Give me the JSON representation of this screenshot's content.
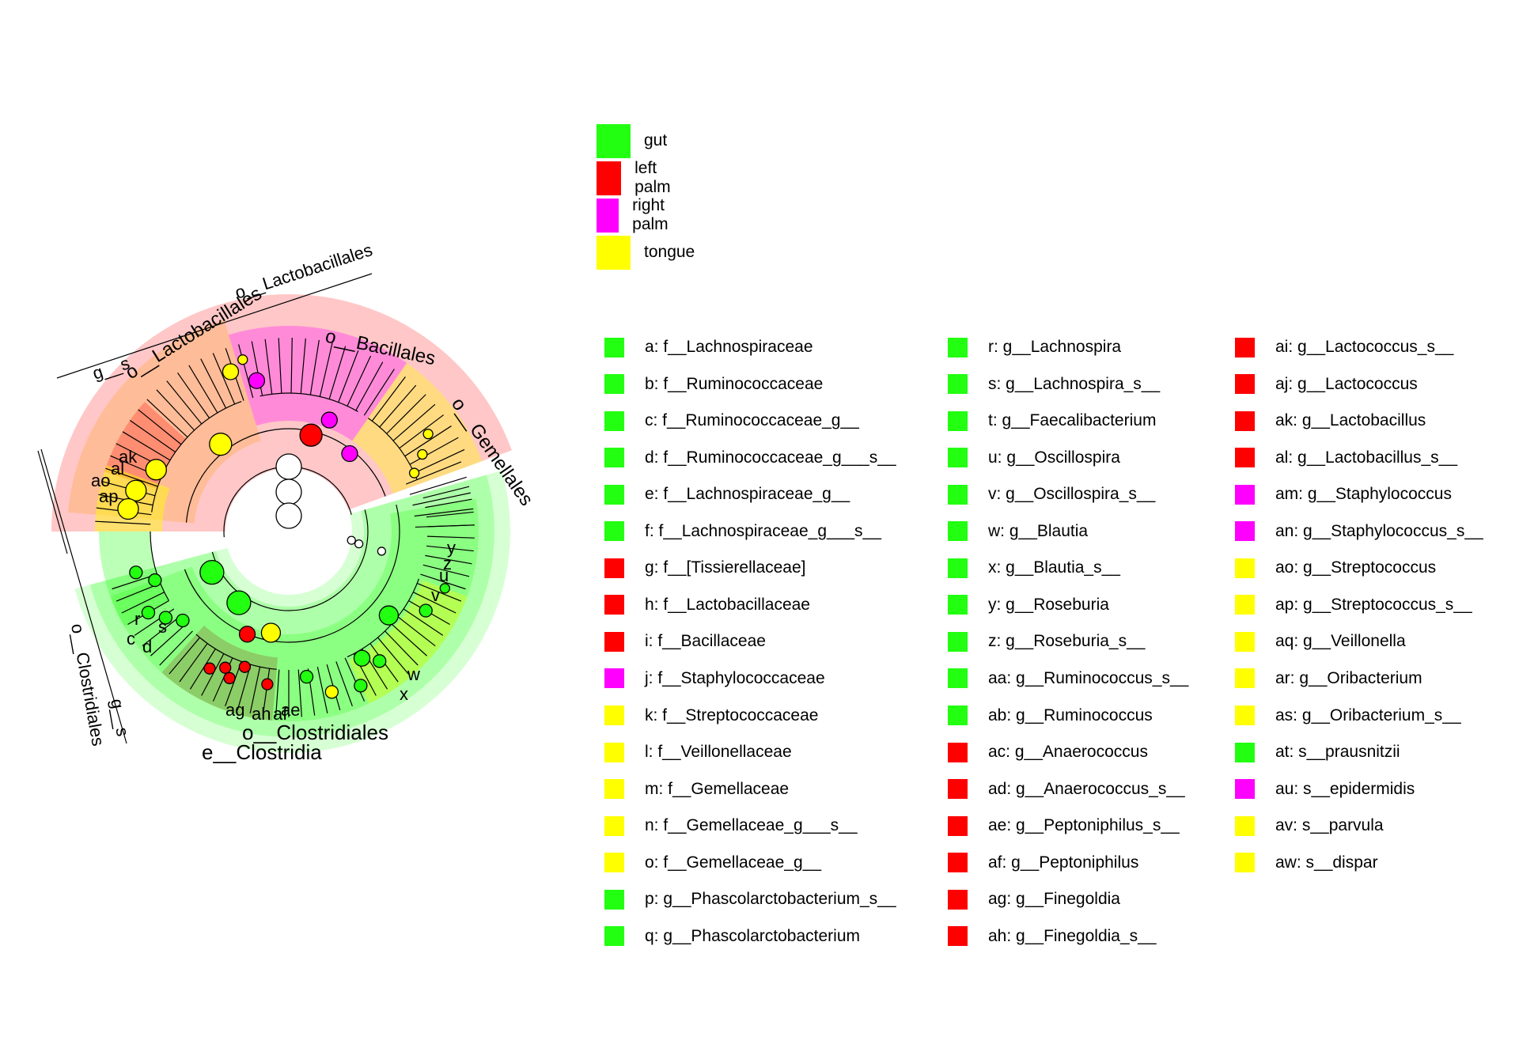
{
  "colors": {
    "gut": "#22ff11",
    "left_palm": "#ff0000",
    "right_palm": "#ff00ff",
    "tongue": "#ffff00"
  },
  "class_legend": [
    {
      "label": "gut",
      "color": "#22ff11"
    },
    {
      "label": "left palm",
      "color": "#ff0000"
    },
    {
      "label": "right palm",
      "color": "#ff00ff"
    },
    {
      "label": "tongue",
      "color": "#ffff00"
    }
  ],
  "taxa_key": {
    "columns": [
      [
        {
          "label": "a: f__Lachnospiraceae",
          "class": "gut"
        },
        {
          "label": "b: f__Ruminococcaceae",
          "class": "gut"
        },
        {
          "label": "c: f__Ruminococcaceae_g__",
          "class": "gut"
        },
        {
          "label": "d: f__Ruminococcaceae_g___s__",
          "class": "gut"
        },
        {
          "label": "e: f__Lachnospiraceae_g__",
          "class": "gut"
        },
        {
          "label": "f: f__Lachnospiraceae_g___s__",
          "class": "gut"
        },
        {
          "label": "g: f__[Tissierellaceae]",
          "class": "left_palm"
        },
        {
          "label": "h: f__Lactobacillaceae",
          "class": "left_palm"
        },
        {
          "label": "i: f__Bacillaceae",
          "class": "left_palm"
        },
        {
          "label": "j: f__Staphylococcaceae",
          "class": "right_palm"
        },
        {
          "label": "k: f__Streptococcaceae",
          "class": "tongue"
        },
        {
          "label": "l: f__Veillonellaceae",
          "class": "tongue"
        },
        {
          "label": "m: f__Gemellaceae",
          "class": "tongue"
        },
        {
          "label": "n: f__Gemellaceae_g___s__",
          "class": "tongue"
        },
        {
          "label": "o: f__Gemellaceae_g__",
          "class": "tongue"
        },
        {
          "label": "p: g__Phascolarctobacterium_s__",
          "class": "gut"
        },
        {
          "label": "q: g__Phascolarctobacterium",
          "class": "gut"
        }
      ],
      [
        {
          "label": "r: g__Lachnospira",
          "class": "gut"
        },
        {
          "label": "s: g__Lachnospira_s__",
          "class": "gut"
        },
        {
          "label": "t: g__Faecalibacterium",
          "class": "gut"
        },
        {
          "label": "u: g__Oscillospira",
          "class": "gut"
        },
        {
          "label": "v: g__Oscillospira_s__",
          "class": "gut"
        },
        {
          "label": "w: g__Blautia",
          "class": "gut"
        },
        {
          "label": "x: g__Blautia_s__",
          "class": "gut"
        },
        {
          "label": "y: g__Roseburia",
          "class": "gut"
        },
        {
          "label": "z: g__Roseburia_s__",
          "class": "gut"
        },
        {
          "label": "aa: g__Ruminococcus_s__",
          "class": "gut"
        },
        {
          "label": "ab: g__Ruminococcus",
          "class": "gut"
        },
        {
          "label": "ac: g__Anaerococcus",
          "class": "left_palm"
        },
        {
          "label": "ad: g__Anaerococcus_s__",
          "class": "left_palm"
        },
        {
          "label": "ae: g__Peptoniphilus_s__",
          "class": "left_palm"
        },
        {
          "label": "af: g__Peptoniphilus",
          "class": "left_palm"
        },
        {
          "label": "ag: g__Finegoldia",
          "class": "left_palm"
        },
        {
          "label": "ah: g__Finegoldia_s__",
          "class": "left_palm"
        }
      ],
      [
        {
          "label": "ai: g__Lactococcus_s__",
          "class": "left_palm"
        },
        {
          "label": "aj: g__Lactococcus",
          "class": "left_palm"
        },
        {
          "label": "ak: g__Lactobacillus",
          "class": "left_palm"
        },
        {
          "label": "al: g__Lactobacillus_s__",
          "class": "left_palm"
        },
        {
          "label": "am: g__Staphylococcus",
          "class": "right_palm"
        },
        {
          "label": "an: g__Staphylococcus_s__",
          "class": "right_palm"
        },
        {
          "label": "ao: g__Streptococcus",
          "class": "tongue"
        },
        {
          "label": "ap: g__Streptococcus_s__",
          "class": "tongue"
        },
        {
          "label": "aq: g__Veillonella",
          "class": "tongue"
        },
        {
          "label": "ar: g__Oribacterium",
          "class": "tongue"
        },
        {
          "label": "as: g__Oribacterium_s__",
          "class": "tongue"
        },
        {
          "label": "at: s__prausnitzii",
          "class": "gut"
        },
        {
          "label": "au: s__epidermidis",
          "class": "right_palm"
        },
        {
          "label": "av: s__parvula",
          "class": "tongue"
        },
        {
          "label": "aw: s__dispar",
          "class": "tongue"
        }
      ]
    ]
  },
  "cladogram": {
    "clade_labels": [
      {
        "text": "e__Clostridia"
      },
      {
        "text": "o__Clostridiales"
      },
      {
        "text": "o__Lactobacillales"
      },
      {
        "text": "o__Bacillales"
      },
      {
        "text": "o__Gemellales"
      },
      {
        "text": "o__Clostridiales"
      },
      {
        "text": "o__Lactobacillales"
      },
      {
        "text": "g__s"
      },
      {
        "text": "g__s"
      }
    ],
    "leaf_letters": [
      "ag",
      "ah",
      "af",
      "ae",
      "ak",
      "al",
      "ao",
      "ap",
      "c",
      "d",
      "r",
      "s",
      "u",
      "v",
      "w",
      "x",
      "y",
      "z"
    ]
  }
}
